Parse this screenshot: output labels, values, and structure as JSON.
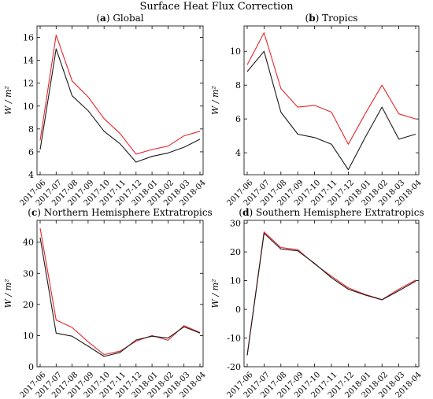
{
  "figure": {
    "title": "Surface Heat Flux Correction"
  },
  "colors": {
    "series_red": "#e8262a",
    "series_black": "#1a1a1a",
    "axis": "#000000"
  },
  "chart_data": [
    {
      "type": "line",
      "panel_letter": "a",
      "title": "Global",
      "ylabel": "W / m²",
      "categories": [
        "2017-06",
        "2017-07",
        "2017-08",
        "2017-09",
        "2017-10",
        "2017-11",
        "2017-12",
        "2018-01",
        "2018-02",
        "2018-03",
        "2018-04"
      ],
      "ylim": [
        4,
        17
      ],
      "yticks": [
        4,
        6,
        8,
        10,
        12,
        14,
        16
      ],
      "series": [
        {
          "color": "red",
          "values": [
            7.0,
            16.2,
            12.2,
            10.8,
            8.9,
            7.6,
            5.8,
            6.2,
            6.5,
            7.4,
            7.8
          ]
        },
        {
          "color": "black",
          "values": [
            6.2,
            15.0,
            10.9,
            9.6,
            7.8,
            6.7,
            5.1,
            5.6,
            5.9,
            6.4,
            7.1
          ]
        }
      ]
    },
    {
      "type": "line",
      "panel_letter": "b",
      "title": "Tropics",
      "ylabel": "W / m²",
      "categories": [
        "2017-06",
        "2017-07",
        "2017-08",
        "2017-09",
        "2017-10",
        "2017-11",
        "2017-12",
        "2018-01",
        "2018-02",
        "2018-03",
        "2018-04"
      ],
      "ylim": [
        2.7,
        11.5
      ],
      "yticks": [
        4,
        6,
        8,
        10
      ],
      "series": [
        {
          "color": "red",
          "values": [
            9.2,
            11.1,
            7.8,
            6.7,
            6.8,
            6.4,
            4.5,
            6.3,
            8.0,
            6.3,
            6.0
          ]
        },
        {
          "color": "black",
          "values": [
            8.8,
            10.0,
            6.4,
            5.1,
            4.9,
            4.5,
            3.0,
            4.9,
            6.7,
            4.8,
            5.1
          ]
        }
      ]
    },
    {
      "type": "line",
      "panel_letter": "c",
      "title": "Northern Hemisphere Extratropics",
      "ylabel": "W / m²",
      "categories": [
        "2017-06",
        "2017-07",
        "2017-08",
        "2017-09",
        "2017-10",
        "2017-11",
        "2017-12",
        "2018-01",
        "2018-02",
        "2018-03",
        "2018-04"
      ],
      "ylim": [
        0,
        47
      ],
      "yticks": [
        0,
        10,
        20,
        30,
        40
      ],
      "series": [
        {
          "color": "red",
          "values": [
            44.5,
            15.0,
            12.6,
            8.0,
            3.9,
            5.0,
            8.2,
            10.0,
            8.5,
            13.2,
            11.0
          ]
        },
        {
          "color": "black",
          "values": [
            41.5,
            10.8,
            9.8,
            6.6,
            3.3,
            4.6,
            8.6,
            9.8,
            9.2,
            12.8,
            10.8
          ]
        }
      ]
    },
    {
      "type": "line",
      "panel_letter": "d",
      "title": "Southern Hemisphere Extratropics",
      "ylabel": "W / m²",
      "categories": [
        "2017-06",
        "2017-07",
        "2017-08",
        "2017-09",
        "2017-10",
        "2017-11",
        "2017-12",
        "2018-01",
        "2018-02",
        "2018-03",
        "2018-04"
      ],
      "ylim": [
        -20,
        31
      ],
      "yticks": [
        -20,
        -10,
        0,
        10,
        20,
        30
      ],
      "series": [
        {
          "color": "red",
          "values": [
            -16.0,
            27.0,
            21.5,
            20.8,
            15.8,
            11.5,
            7.5,
            5.2,
            3.4,
            7.0,
            10.2
          ]
        },
        {
          "color": "black",
          "values": [
            -16.0,
            26.5,
            21.0,
            20.4,
            16.0,
            11.0,
            7.0,
            5.0,
            3.3,
            6.5,
            9.8
          ]
        }
      ]
    }
  ]
}
